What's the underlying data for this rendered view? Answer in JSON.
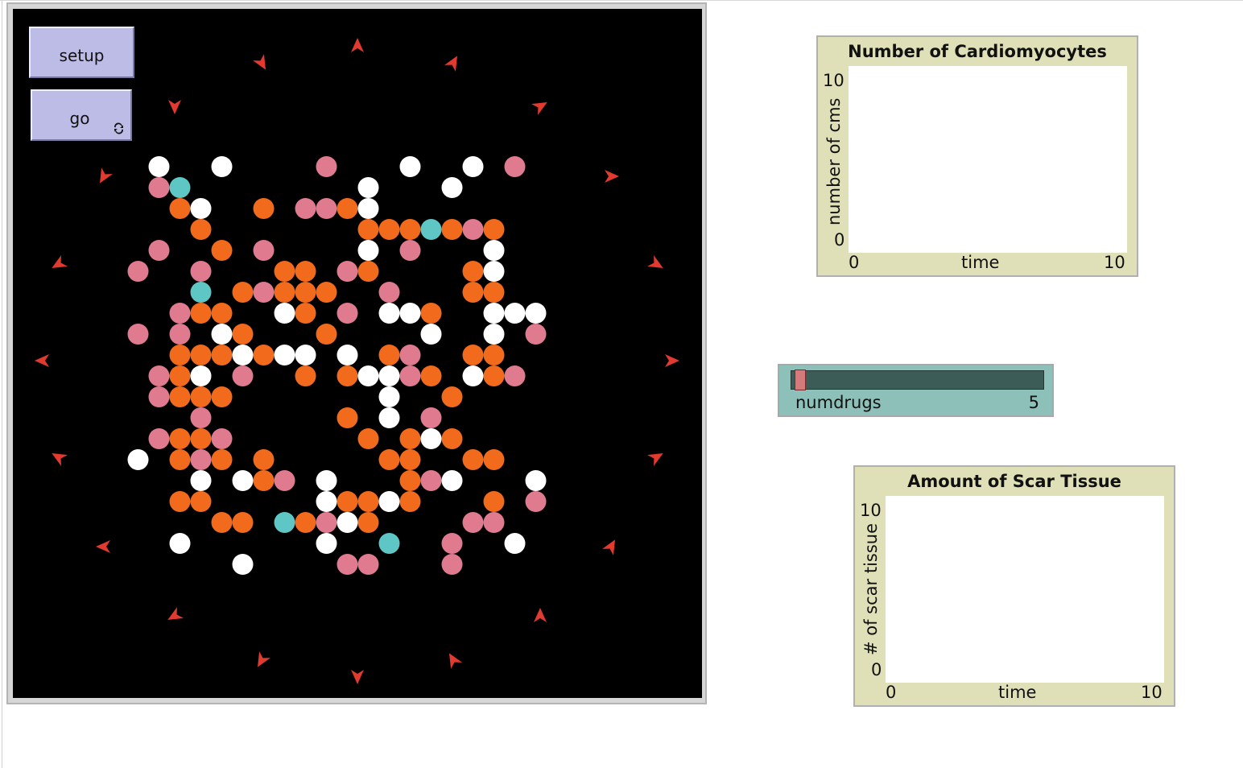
{
  "buttons": {
    "setup_label": "setup",
    "go_label": "go",
    "go_icon": "forever-loop-icon"
  },
  "world": {
    "background": "#000000",
    "colors": {
      "pink": "#e07a8e",
      "orange": "#f26a1b",
      "white": "#ffffff",
      "cyan": "#5ec6c4",
      "arrow": "#e23a2e"
    },
    "cells": [
      [
        7,
        7,
        "W"
      ],
      [
        10,
        7,
        "W"
      ],
      [
        15,
        7,
        "P"
      ],
      [
        19,
        7,
        "W"
      ],
      [
        22,
        7,
        "W"
      ],
      [
        24,
        7,
        "P"
      ],
      [
        7,
        8,
        "P"
      ],
      [
        8,
        8,
        "C"
      ],
      [
        17,
        8,
        "W"
      ],
      [
        21,
        8,
        "W"
      ],
      [
        8,
        9,
        "O"
      ],
      [
        9,
        9,
        "W"
      ],
      [
        12,
        9,
        "O"
      ],
      [
        14,
        9,
        "P"
      ],
      [
        15,
        9,
        "P"
      ],
      [
        16,
        9,
        "O"
      ],
      [
        17,
        9,
        "W"
      ],
      [
        9,
        10,
        "O"
      ],
      [
        17,
        10,
        "O"
      ],
      [
        18,
        10,
        "O"
      ],
      [
        19,
        10,
        "O"
      ],
      [
        20,
        10,
        "C"
      ],
      [
        21,
        10,
        "O"
      ],
      [
        22,
        10,
        "P"
      ],
      [
        23,
        10,
        "O"
      ],
      [
        7,
        11,
        "P"
      ],
      [
        10,
        11,
        "O"
      ],
      [
        12,
        11,
        "P"
      ],
      [
        17,
        11,
        "W"
      ],
      [
        19,
        11,
        "P"
      ],
      [
        23,
        11,
        "W"
      ],
      [
        6,
        12,
        "P"
      ],
      [
        9,
        12,
        "P"
      ],
      [
        13,
        12,
        "O"
      ],
      [
        14,
        12,
        "O"
      ],
      [
        16,
        12,
        "P"
      ],
      [
        17,
        12,
        "O"
      ],
      [
        22,
        12,
        "O"
      ],
      [
        23,
        12,
        "W"
      ],
      [
        9,
        13,
        "C"
      ],
      [
        11,
        13,
        "O"
      ],
      [
        12,
        13,
        "P"
      ],
      [
        13,
        13,
        "O"
      ],
      [
        14,
        13,
        "O"
      ],
      [
        15,
        13,
        "O"
      ],
      [
        18,
        13,
        "P"
      ],
      [
        22,
        13,
        "O"
      ],
      [
        23,
        13,
        "O"
      ],
      [
        8,
        14,
        "P"
      ],
      [
        9,
        14,
        "O"
      ],
      [
        10,
        14,
        "O"
      ],
      [
        13,
        14,
        "W"
      ],
      [
        14,
        14,
        "O"
      ],
      [
        16,
        14,
        "P"
      ],
      [
        18,
        14,
        "W"
      ],
      [
        19,
        14,
        "W"
      ],
      [
        20,
        14,
        "O"
      ],
      [
        23,
        14,
        "W"
      ],
      [
        24,
        14,
        "W"
      ],
      [
        25,
        14,
        "W"
      ],
      [
        6,
        15,
        "P"
      ],
      [
        8,
        15,
        "P"
      ],
      [
        10,
        15,
        "W"
      ],
      [
        11,
        15,
        "O"
      ],
      [
        15,
        15,
        "O"
      ],
      [
        20,
        15,
        "W"
      ],
      [
        23,
        15,
        "W"
      ],
      [
        25,
        15,
        "P"
      ],
      [
        8,
        16,
        "O"
      ],
      [
        9,
        16,
        "O"
      ],
      [
        10,
        16,
        "O"
      ],
      [
        11,
        16,
        "W"
      ],
      [
        12,
        16,
        "O"
      ],
      [
        13,
        16,
        "W"
      ],
      [
        14,
        16,
        "W"
      ],
      [
        16,
        16,
        "W"
      ],
      [
        18,
        16,
        "O"
      ],
      [
        19,
        16,
        "P"
      ],
      [
        22,
        16,
        "O"
      ],
      [
        23,
        16,
        "O"
      ],
      [
        7,
        17,
        "P"
      ],
      [
        8,
        17,
        "O"
      ],
      [
        9,
        17,
        "W"
      ],
      [
        11,
        17,
        "P"
      ],
      [
        14,
        17,
        "O"
      ],
      [
        16,
        17,
        "O"
      ],
      [
        17,
        17,
        "W"
      ],
      [
        18,
        17,
        "W"
      ],
      [
        19,
        17,
        "P"
      ],
      [
        20,
        17,
        "O"
      ],
      [
        22,
        17,
        "W"
      ],
      [
        23,
        17,
        "O"
      ],
      [
        24,
        17,
        "P"
      ],
      [
        7,
        18,
        "P"
      ],
      [
        8,
        18,
        "O"
      ],
      [
        9,
        18,
        "O"
      ],
      [
        10,
        18,
        "O"
      ],
      [
        18,
        18,
        "W"
      ],
      [
        21,
        18,
        "O"
      ],
      [
        9,
        19,
        "P"
      ],
      [
        16,
        19,
        "O"
      ],
      [
        18,
        19,
        "W"
      ],
      [
        20,
        19,
        "P"
      ],
      [
        7,
        20,
        "P"
      ],
      [
        8,
        20,
        "O"
      ],
      [
        9,
        20,
        "O"
      ],
      [
        10,
        20,
        "P"
      ],
      [
        17,
        20,
        "O"
      ],
      [
        19,
        20,
        "O"
      ],
      [
        20,
        20,
        "W"
      ],
      [
        21,
        20,
        "O"
      ],
      [
        6,
        21,
        "W"
      ],
      [
        8,
        21,
        "O"
      ],
      [
        9,
        21,
        "P"
      ],
      [
        10,
        21,
        "O"
      ],
      [
        12,
        21,
        "O"
      ],
      [
        18,
        21,
        "O"
      ],
      [
        19,
        21,
        "O"
      ],
      [
        22,
        21,
        "O"
      ],
      [
        23,
        21,
        "O"
      ],
      [
        9,
        22,
        "W"
      ],
      [
        11,
        22,
        "W"
      ],
      [
        12,
        22,
        "O"
      ],
      [
        13,
        22,
        "P"
      ],
      [
        15,
        22,
        "W"
      ],
      [
        19,
        22,
        "O"
      ],
      [
        20,
        22,
        "P"
      ],
      [
        21,
        22,
        "W"
      ],
      [
        25,
        22,
        "W"
      ],
      [
        8,
        23,
        "O"
      ],
      [
        9,
        23,
        "O"
      ],
      [
        15,
        23,
        "W"
      ],
      [
        16,
        23,
        "O"
      ],
      [
        17,
        23,
        "O"
      ],
      [
        18,
        23,
        "W"
      ],
      [
        19,
        23,
        "O"
      ],
      [
        23,
        23,
        "O"
      ],
      [
        25,
        23,
        "P"
      ],
      [
        10,
        24,
        "O"
      ],
      [
        11,
        24,
        "O"
      ],
      [
        13,
        24,
        "C"
      ],
      [
        14,
        24,
        "O"
      ],
      [
        15,
        24,
        "P"
      ],
      [
        16,
        24,
        "W"
      ],
      [
        17,
        24,
        "O"
      ],
      [
        22,
        24,
        "P"
      ],
      [
        23,
        24,
        "P"
      ],
      [
        8,
        25,
        "W"
      ],
      [
        15,
        25,
        "W"
      ],
      [
        18,
        25,
        "C"
      ],
      [
        21,
        25,
        "P"
      ],
      [
        24,
        25,
        "W"
      ],
      [
        11,
        26,
        "W"
      ],
      [
        16,
        26,
        "P"
      ],
      [
        17,
        26,
        "P"
      ],
      [
        21,
        26,
        "P"
      ]
    ],
    "arrows": [
      [
        428,
        46,
        0
      ],
      [
        547,
        67,
        30
      ],
      [
        655,
        121,
        60
      ],
      [
        743,
        208,
        90
      ],
      [
        799,
        317,
        120
      ],
      [
        818,
        437,
        90
      ],
      [
        799,
        557,
        60
      ],
      [
        743,
        668,
        30
      ],
      [
        655,
        754,
        0
      ],
      [
        547,
        809,
        -30
      ],
      [
        428,
        829,
        180
      ],
      [
        309,
        809,
        210
      ],
      [
        201,
        754,
        240
      ],
      [
        113,
        668,
        270
      ],
      [
        57,
        557,
        300
      ],
      [
        37,
        437,
        270
      ],
      [
        57,
        317,
        240
      ],
      [
        113,
        208,
        210
      ],
      [
        201,
        121,
        180
      ],
      [
        309,
        67,
        150
      ]
    ]
  },
  "plot_cardio": {
    "title": "Number of Cardiomyocytes",
    "y_label": "number of cms",
    "x_label": "time",
    "x_min": "0",
    "x_max": "10",
    "y_min": "0",
    "y_max": "10"
  },
  "plot_scar": {
    "title": "Amount of Scar Tissue",
    "y_label": "# of scar tissue",
    "x_label": "time",
    "x_min": "0",
    "x_max": "10",
    "y_min": "0",
    "y_max": "10"
  },
  "slider": {
    "name": "numdrugs",
    "value": "5",
    "fraction": 0.0
  }
}
